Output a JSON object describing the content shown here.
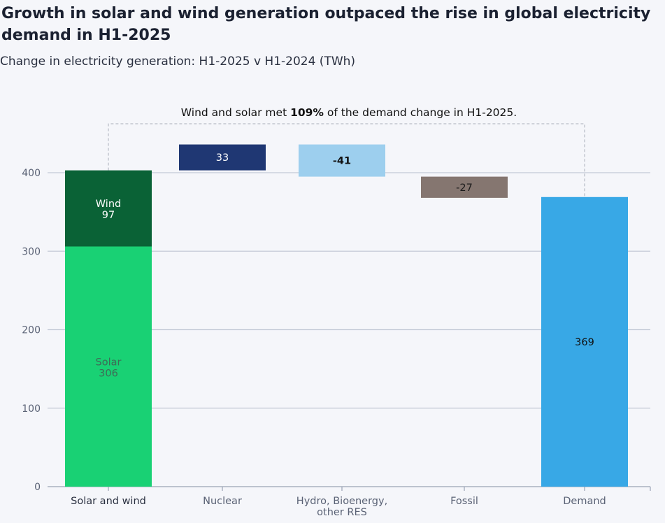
{
  "title": "Growth in solar and wind generation outpaced the rise in global electricity demand in H1-2025",
  "subtitle": "Change in electricity generation: H1-2025 v H1-2024 (TWh)",
  "annotation": {
    "prefix": "Wind and solar met ",
    "highlight": "109%",
    "suffix": " of the demand change in H1-2025."
  },
  "chart_data": {
    "type": "bar",
    "subtype": "waterfall",
    "ylim": [
      0,
      440
    ],
    "yticks": [
      0,
      100,
      200,
      300,
      400
    ],
    "grid": true,
    "categories": [
      "Solar and wind",
      "Nuclear",
      "Hydro, Bioenergy, other RES",
      "Fossil",
      "Demand"
    ],
    "bars": [
      {
        "category": "Solar and wind",
        "label": "Solar",
        "value_label": "306",
        "value": 306,
        "start": 0,
        "color": "#19d174",
        "text_color": "#3e6b57"
      },
      {
        "category": "Solar and wind",
        "label": "Wind",
        "value_label": "97",
        "value": 97,
        "start": 306,
        "color": "#0a6236",
        "text_color": "#ffffff"
      },
      {
        "category": "Nuclear",
        "label": "",
        "value_label": "33",
        "value": 33,
        "start": 403,
        "color": "#1f3773",
        "text_color": "#ffffff"
      },
      {
        "category": "Hydro, Bioenergy, other RES",
        "label": "",
        "value_label": "-41",
        "value": -41,
        "start": 436,
        "color": "#9dcfee",
        "text_color": "#111111",
        "bold": true
      },
      {
        "category": "Fossil",
        "label": "",
        "value_label": "-27",
        "value": -27,
        "start": 395,
        "color": "#857670",
        "text_color": "#1b1b1b"
      },
      {
        "category": "Demand",
        "label": "",
        "value_label": "369",
        "value": 369,
        "start": 0,
        "color": "#38a8e6",
        "text_color": "#111111"
      }
    ]
  }
}
